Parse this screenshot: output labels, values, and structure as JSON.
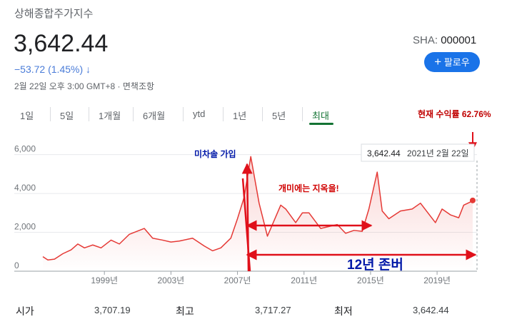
{
  "header": {
    "title": "상해종합주가지수",
    "price": "3,642.44",
    "change": "−53.72 (1.45%)",
    "timestamp": "2월 22일 오후 3:00 GMT+8",
    "disclaimer": "면책조항",
    "exchange": "SHA:",
    "ticker": "000001",
    "follow": "팔로우"
  },
  "tabs": {
    "items": [
      "1일",
      "5일",
      "1개월",
      "6개월",
      "ytd",
      "1년",
      "5년",
      "최대"
    ],
    "selected": 7
  },
  "chart_data": {
    "type": "line",
    "annotations": {
      "return": "현재 수익률 62.76%",
      "hell": "개미에는 지옥을!",
      "join": "미차솔 가입",
      "hold": "12년 존버"
    },
    "tooltip": {
      "value": "3,642.44",
      "date": "2021년 2월 22일"
    },
    "x": [
      1995.3,
      1995.6,
      1996.0,
      1996.5,
      1997.0,
      1997.4,
      1997.8,
      1998.3,
      1998.8,
      1999.4,
      1999.9,
      2000.5,
      2001.4,
      2001.9,
      2002.5,
      2003.0,
      2003.5,
      2004.3,
      2005.0,
      2005.5,
      2006.0,
      2006.6,
      2007.0,
      2007.4,
      2007.8,
      2008.3,
      2008.8,
      2009.6,
      2009.9,
      2010.5,
      2010.9,
      2011.3,
      2012.0,
      2012.5,
      2013.0,
      2013.5,
      2014.0,
      2014.5,
      2014.9,
      2015.4,
      2015.7,
      2016.1,
      2016.8,
      2017.5,
      2018.0,
      2018.9,
      2019.3,
      2019.8,
      2020.3,
      2020.6,
      2021.1,
      2021.14
    ],
    "series": [
      {
        "name": "상해종합주가지수",
        "color": "#e53935",
        "values": [
          750,
          580,
          620,
          900,
          1100,
          1400,
          1200,
          1350,
          1200,
          1600,
          1400,
          1900,
          2200,
          1700,
          1600,
          1500,
          1550,
          1700,
          1300,
          1050,
          1200,
          1700,
          2700,
          3800,
          5900,
          3500,
          1800,
          3400,
          3200,
          2500,
          3000,
          3000,
          2200,
          2300,
          2400,
          1950,
          2100,
          2050,
          3200,
          5100,
          3100,
          2700,
          3100,
          3200,
          3500,
          2500,
          3200,
          2900,
          2750,
          3400,
          3600,
          3642.44
        ]
      }
    ],
    "xlim": [
      1995.3,
      2021.4
    ],
    "ylim": [
      0,
      6500
    ],
    "xticks": [
      {
        "value": 1999,
        "label": "1999년"
      },
      {
        "value": 2003,
        "label": "2003년"
      },
      {
        "value": 2007,
        "label": "2007년"
      },
      {
        "value": 2011,
        "label": "2011년"
      },
      {
        "value": 2015,
        "label": "2015년"
      },
      {
        "value": 2019,
        "label": "2019년"
      }
    ],
    "yticks": [
      0,
      {
        "value": 2000,
        "label": "2,000"
      },
      {
        "value": 4000,
        "label": "4,000"
      },
      {
        "value": 6000,
        "label": "6,000"
      }
    ],
    "grid": true
  },
  "stats": {
    "rows": [
      [
        "시가",
        "3,707.19"
      ],
      [
        "최고",
        "3,717.27"
      ],
      [
        "최저",
        "3,642.44"
      ]
    ]
  }
}
